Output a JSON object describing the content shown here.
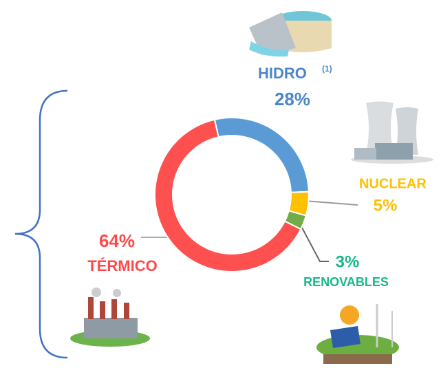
{
  "chart_data": {
    "type": "donut",
    "categories": [
      "HIDRO",
      "NUCLEAR",
      "RENOVABLES",
      "TÉRMICO"
    ],
    "footnote_marker": "(1)",
    "values": [
      28,
      5,
      3,
      64
    ],
    "value_labels": [
      "28%",
      "5%",
      "3%",
      "64%"
    ],
    "colors": [
      "#5b9bd5",
      "#ffc000",
      "#70ad47",
      "#ff5050"
    ]
  }
}
